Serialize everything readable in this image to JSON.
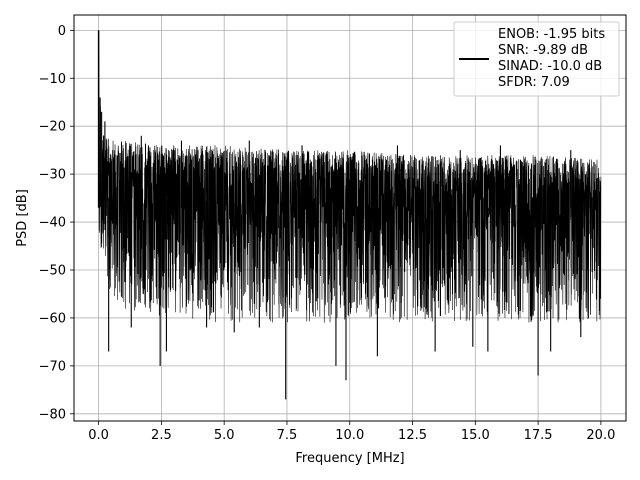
{
  "chart_data": {
    "type": "line",
    "title": "",
    "xlabel": "Frequency [MHz]",
    "ylabel": "PSD [dB]",
    "xlim": [
      -0.98,
      21.0
    ],
    "ylim": [
      -81.5,
      3.2
    ],
    "xticks": [
      0.0,
      2.5,
      5.0,
      7.5,
      10.0,
      12.5,
      15.0,
      17.5,
      20.0
    ],
    "xtick_labels": [
      "0.0",
      "2.5",
      "5.0",
      "7.5",
      "10.0",
      "12.5",
      "15.0",
      "17.5",
      "20.0"
    ],
    "yticks": [
      0,
      -10,
      -20,
      -30,
      -40,
      -50,
      -60,
      -70,
      -80
    ],
    "ytick_labels": [
      "0",
      "−10",
      "−20",
      "−30",
      "−40",
      "−50",
      "−60",
      "−70",
      "−80"
    ],
    "grid": true,
    "legend_position": "top-right",
    "series": [
      {
        "name": "ENOB: -1.95 bits\nSNR: -9.89 dB\nSINAD: -10.0 dB\nSFDR: 7.09",
        "legend_lines": [
          "ENOB: -1.95 bits",
          "SNR: -9.89 dB",
          "SINAD: -10.0 dB",
          "SFDR: 7.09"
        ],
        "color": "#000000",
        "x_range": [
          0.0,
          20.0
        ],
        "peak": {
          "x": 0.0,
          "y": 0
        },
        "noise_envelope": {
          "x": [
            0.0,
            0.03,
            0.08,
            0.15,
            0.3,
            0.5,
            1.0,
            2.5,
            5.0,
            7.5,
            10.0,
            12.5,
            15.0,
            17.5,
            20.0
          ],
          "upper": [
            0,
            -14,
            -16,
            -19,
            -22,
            -23,
            -23,
            -24,
            -24,
            -25,
            -25,
            -26,
            -26,
            -26,
            -27
          ],
          "lower": [
            -37,
            -43,
            -45,
            -48,
            -52,
            -55,
            -58,
            -60,
            -61,
            -61,
            -61,
            -61,
            -61,
            -61,
            -61
          ],
          "median": [
            -36,
            -35,
            -35,
            -35,
            -35,
            -35,
            -35,
            -35,
            -36,
            -36,
            -36,
            -37,
            -37,
            -37,
            -37
          ]
        },
        "deep_spikes": [
          {
            "x": 0.4,
            "y": -67
          },
          {
            "x": 1.3,
            "y": -62
          },
          {
            "x": 2.45,
            "y": -70
          },
          {
            "x": 2.7,
            "y": -67
          },
          {
            "x": 4.3,
            "y": -62
          },
          {
            "x": 5.4,
            "y": -63
          },
          {
            "x": 6.4,
            "y": -62
          },
          {
            "x": 7.45,
            "y": -77
          },
          {
            "x": 9.45,
            "y": -70
          },
          {
            "x": 9.85,
            "y": -73
          },
          {
            "x": 11.1,
            "y": -68
          },
          {
            "x": 13.4,
            "y": -67
          },
          {
            "x": 14.9,
            "y": -66
          },
          {
            "x": 15.5,
            "y": -67
          },
          {
            "x": 17.5,
            "y": -72
          },
          {
            "x": 18.0,
            "y": -67
          },
          {
            "x": 19.2,
            "y": -64
          }
        ],
        "high_spikes": [
          {
            "x": 0.06,
            "y": -14
          },
          {
            "x": 0.12,
            "y": -17
          },
          {
            "x": 0.25,
            "y": -19
          },
          {
            "x": 1.7,
            "y": -22
          },
          {
            "x": 3.3,
            "y": -23
          },
          {
            "x": 6.0,
            "y": -23
          },
          {
            "x": 8.1,
            "y": -24
          },
          {
            "x": 11.9,
            "y": -24
          },
          {
            "x": 14.4,
            "y": -25
          },
          {
            "x": 16.0,
            "y": -24
          },
          {
            "x": 18.8,
            "y": -25
          }
        ]
      }
    ]
  }
}
